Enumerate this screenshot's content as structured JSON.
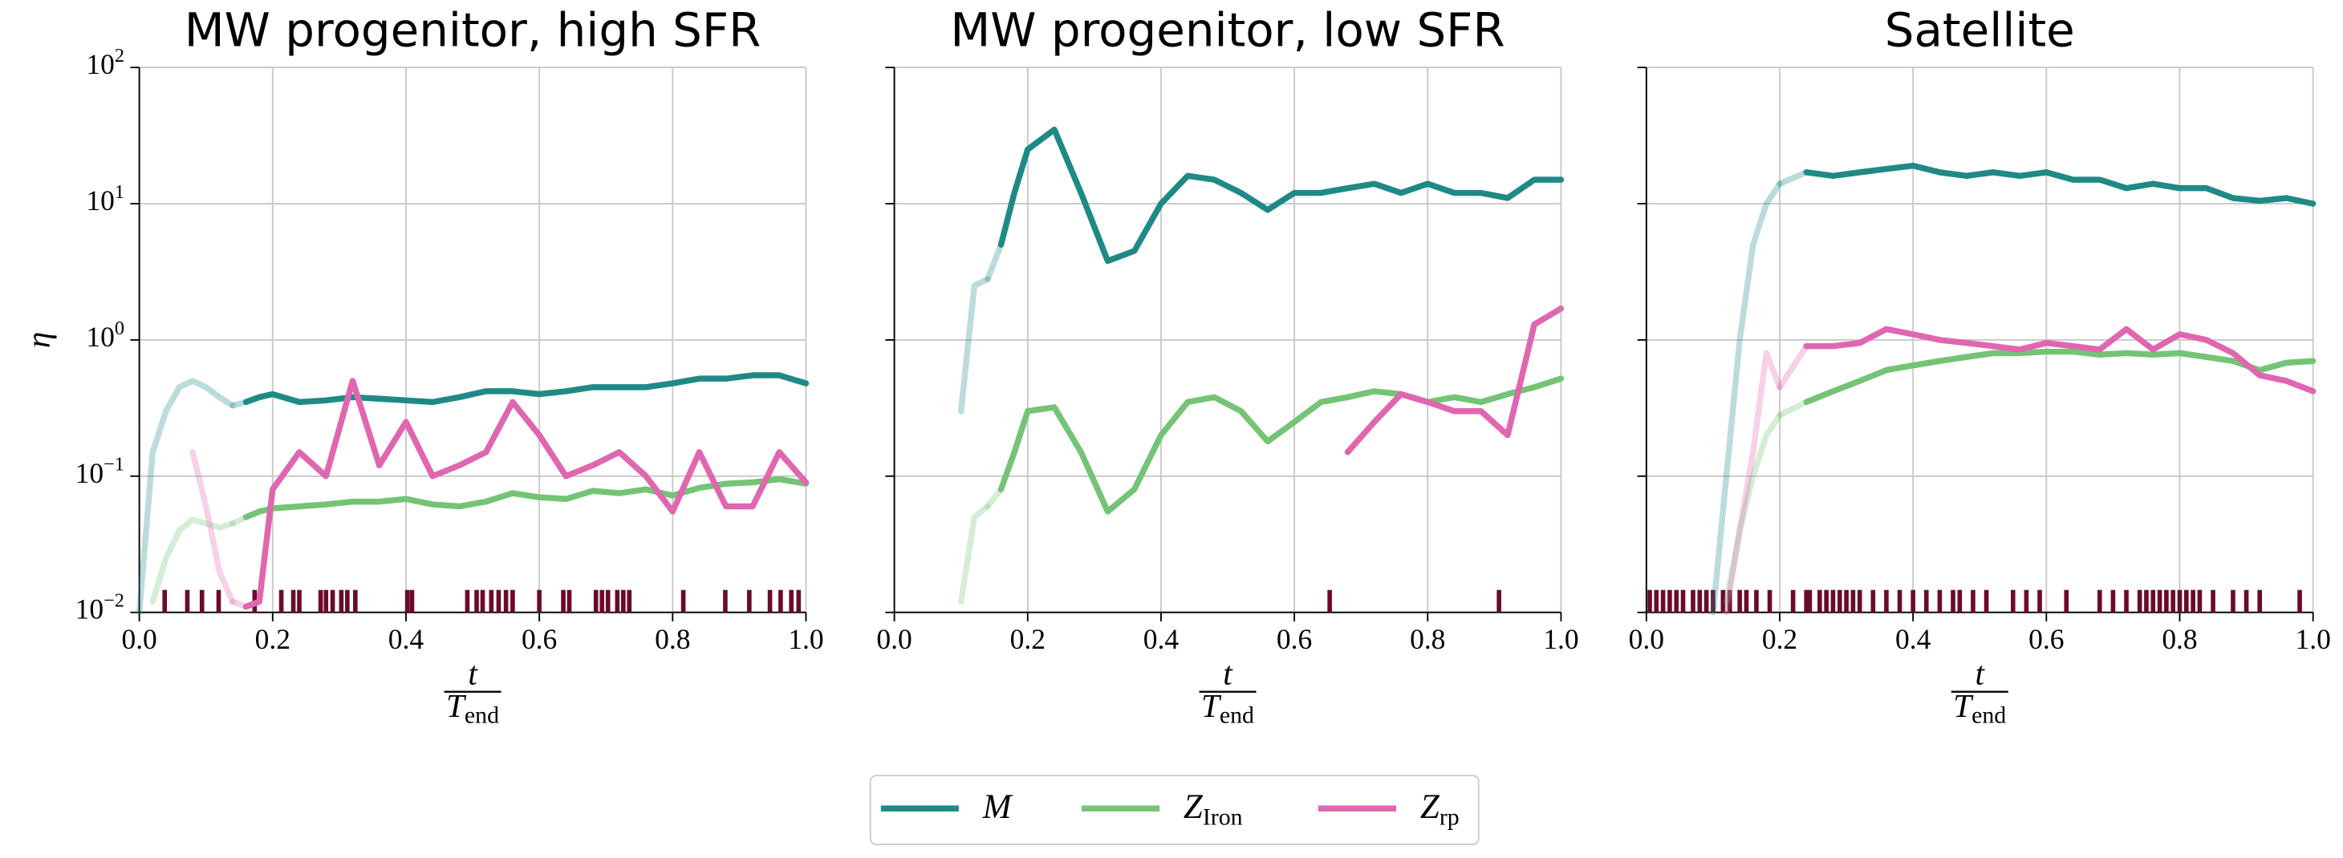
{
  "legend": [
    {
      "name": "M",
      "color": "#1f8a85"
    },
    {
      "name": "Z",
      "sub": "Iron",
      "color": "#74c476"
    },
    {
      "name": "Z",
      "sub": "rp",
      "color": "#e066b0"
    }
  ],
  "event_color": "#6b0a2a",
  "chart_data": [
    {
      "type": "line",
      "title": "MW progenitor, high SFR",
      "ylabel": "η",
      "xlabel_num": "t",
      "xlabel_den": "T",
      "xlabel_den_sub": "end",
      "log_y": true,
      "grid": true,
      "xlim": [
        0,
        1
      ],
      "ylim": [
        0.01,
        100
      ],
      "xticks": [
        {
          "value": 0,
          "label": "0.0"
        },
        0.2,
        0.4,
        0.6,
        0.8,
        {
          "value": 1,
          "label": "1.0"
        }
      ],
      "yticks": [
        {
          "value": 0.01,
          "label": "10",
          "exponent": "−2"
        },
        {
          "value": 0.1,
          "label": "10",
          "exponent": "−1"
        },
        {
          "value": 1,
          "label": "10",
          "exponent": "0"
        },
        {
          "value": 10,
          "label": "10",
          "exponent": "1"
        },
        {
          "value": 100,
          "label": "10",
          "exponent": "2"
        }
      ],
      "fade_x": 0.16,
      "x": [
        0,
        0.02,
        0.04,
        0.06,
        0.08,
        0.1,
        0.12,
        0.14,
        0.16,
        0.18,
        0.2,
        0.24,
        0.28,
        0.32,
        0.36,
        0.4,
        0.44,
        0.48,
        0.52,
        0.56,
        0.6,
        0.64,
        0.68,
        0.72,
        0.76,
        0.8,
        0.84,
        0.88,
        0.92,
        0.96,
        1.0
      ],
      "series": [
        {
          "values": [
            0.01,
            0.15,
            0.3,
            0.45,
            0.5,
            0.45,
            0.38,
            0.33,
            0.35,
            0.38,
            0.4,
            0.35,
            0.36,
            0.38,
            0.37,
            0.36,
            0.35,
            0.38,
            0.42,
            0.42,
            0.4,
            0.42,
            0.45,
            0.45,
            0.45,
            0.48,
            0.52,
            0.52,
            0.55,
            0.55,
            0.48
          ]
        },
        {
          "values": [
            null,
            0.012,
            0.025,
            0.04,
            0.048,
            0.045,
            0.042,
            0.045,
            0.05,
            0.055,
            0.058,
            0.06,
            0.062,
            0.065,
            0.065,
            0.068,
            0.062,
            0.06,
            0.065,
            0.075,
            0.07,
            0.068,
            0.078,
            0.075,
            0.08,
            0.072,
            0.082,
            0.088,
            0.09,
            0.095,
            0.088
          ]
        },
        {
          "values": [
            null,
            null,
            null,
            null,
            0.15,
            0.06,
            0.02,
            0.012,
            0.011,
            0.012,
            0.08,
            0.15,
            0.1,
            0.5,
            0.12,
            0.25,
            0.1,
            0.12,
            0.15,
            0.35,
            0.2,
            0.1,
            0.12,
            0.15,
            0.1,
            0.055,
            0.15,
            0.06,
            0.06,
            0.15,
            0.09
          ]
        }
      ],
      "events": [
        0.038,
        0.072,
        0.094,
        0.119,
        0.173,
        0.213,
        0.231,
        0.24,
        0.272,
        0.28,
        0.29,
        0.303,
        0.312,
        0.324,
        0.402,
        0.409,
        0.492,
        0.506,
        0.515,
        0.528,
        0.539,
        0.55,
        0.56,
        0.6,
        0.636,
        0.645,
        0.685,
        0.694,
        0.703,
        0.717,
        0.726,
        0.735,
        0.816,
        0.879,
        0.915,
        0.946,
        0.962,
        0.978,
        0.989
      ]
    },
    {
      "type": "line",
      "title": "MW progenitor, low SFR",
      "xlabel_num": "t",
      "xlabel_den": "T",
      "xlabel_den_sub": "end",
      "log_y": true,
      "grid": true,
      "xlim": [
        0,
        1
      ],
      "ylim": [
        0.01,
        100
      ],
      "xticks": [
        {
          "value": 0,
          "label": "0.0"
        },
        0.2,
        0.4,
        0.6,
        0.8,
        {
          "value": 1,
          "label": "1.0"
        }
      ],
      "yticks": [
        0.01,
        0.1,
        1,
        10,
        100
      ],
      "fade_x": 0.16,
      "x": [
        0,
        0.02,
        0.04,
        0.06,
        0.08,
        0.1,
        0.12,
        0.14,
        0.16,
        0.18,
        0.2,
        0.24,
        0.28,
        0.32,
        0.36,
        0.4,
        0.44,
        0.48,
        0.52,
        0.56,
        0.6,
        0.64,
        0.68,
        0.72,
        0.76,
        0.8,
        0.84,
        0.88,
        0.92,
        0.96,
        1.0
      ],
      "series": [
        {
          "values": [
            null,
            null,
            null,
            null,
            null,
            0.3,
            2.5,
            2.8,
            5,
            12,
            25,
            35,
            12,
            3.8,
            4.5,
            10,
            16,
            15,
            12,
            9,
            12,
            12,
            13,
            14,
            12,
            14,
            12,
            12,
            11,
            15,
            15
          ]
        },
        {
          "values": [
            null,
            null,
            null,
            null,
            null,
            0.012,
            0.05,
            0.06,
            0.08,
            0.15,
            0.3,
            0.32,
            0.15,
            0.055,
            0.08,
            0.2,
            0.35,
            0.38,
            0.3,
            0.18,
            0.25,
            0.35,
            0.38,
            0.42,
            0.4,
            0.35,
            0.38,
            0.35,
            0.4,
            0.45,
            0.52
          ]
        },
        {
          "values": [
            null,
            null,
            null,
            null,
            null,
            null,
            null,
            null,
            null,
            null,
            null,
            null,
            null,
            null,
            null,
            null,
            null,
            null,
            null,
            null,
            null,
            null,
            0.15,
            0.25,
            0.4,
            0.35,
            0.3,
            0.3,
            0.2,
            1.3,
            1.7
          ]
        }
      ],
      "events": [
        0.653,
        0.907
      ]
    },
    {
      "type": "line",
      "title": "Satellite",
      "xlabel_num": "t",
      "xlabel_den": "T",
      "xlabel_den_sub": "end",
      "log_y": true,
      "grid": true,
      "xlim": [
        0,
        1
      ],
      "ylim": [
        0.01,
        100
      ],
      "xticks": [
        {
          "value": 0,
          "label": "0.0"
        },
        0.2,
        0.4,
        0.6,
        0.8,
        {
          "value": 1,
          "label": "1.0"
        }
      ],
      "yticks": [
        0.01,
        0.1,
        1,
        10,
        100
      ],
      "fade_x": 0.24,
      "x": [
        0,
        0.02,
        0.04,
        0.06,
        0.08,
        0.1,
        0.12,
        0.14,
        0.16,
        0.18,
        0.2,
        0.24,
        0.28,
        0.32,
        0.36,
        0.4,
        0.44,
        0.48,
        0.52,
        0.56,
        0.6,
        0.64,
        0.68,
        0.72,
        0.76,
        0.8,
        0.84,
        0.88,
        0.92,
        0.96,
        1.0
      ],
      "series": [
        {
          "values": [
            null,
            null,
            null,
            null,
            null,
            0.01,
            0.1,
            1,
            5,
            10,
            14,
            17,
            16,
            17,
            18,
            19,
            17,
            16,
            17,
            16,
            17,
            15,
            15,
            13,
            14,
            13,
            13,
            11,
            10.5,
            11,
            10
          ]
        },
        {
          "values": [
            null,
            null,
            null,
            null,
            null,
            null,
            0.012,
            0.04,
            0.1,
            0.2,
            0.28,
            0.35,
            0.42,
            0.5,
            0.6,
            0.65,
            0.7,
            0.75,
            0.8,
            0.8,
            0.82,
            0.82,
            0.78,
            0.8,
            0.78,
            0.8,
            0.75,
            0.7,
            0.6,
            0.68,
            0.7
          ]
        },
        {
          "values": [
            null,
            null,
            null,
            null,
            null,
            null,
            0.01,
            0.04,
            0.15,
            0.8,
            0.45,
            0.9,
            0.9,
            0.95,
            1.2,
            1.1,
            1.0,
            0.95,
            0.9,
            0.85,
            0.95,
            0.9,
            0.85,
            1.2,
            0.85,
            1.1,
            1.0,
            0.8,
            0.55,
            0.5,
            0.42
          ]
        }
      ],
      "events": [
        0.005,
        0.015,
        0.025,
        0.035,
        0.045,
        0.055,
        0.07,
        0.08,
        0.09,
        0.1,
        0.115,
        0.125,
        0.14,
        0.15,
        0.165,
        0.185,
        0.22,
        0.24,
        0.245,
        0.26,
        0.27,
        0.28,
        0.29,
        0.3,
        0.31,
        0.32,
        0.34,
        0.36,
        0.38,
        0.4,
        0.42,
        0.44,
        0.46,
        0.47,
        0.49,
        0.51,
        0.55,
        0.57,
        0.59,
        0.63,
        0.68,
        0.7,
        0.72,
        0.74,
        0.75,
        0.76,
        0.77,
        0.78,
        0.79,
        0.8,
        0.81,
        0.82,
        0.83,
        0.85,
        0.88,
        0.9,
        0.92,
        0.98
      ]
    }
  ]
}
